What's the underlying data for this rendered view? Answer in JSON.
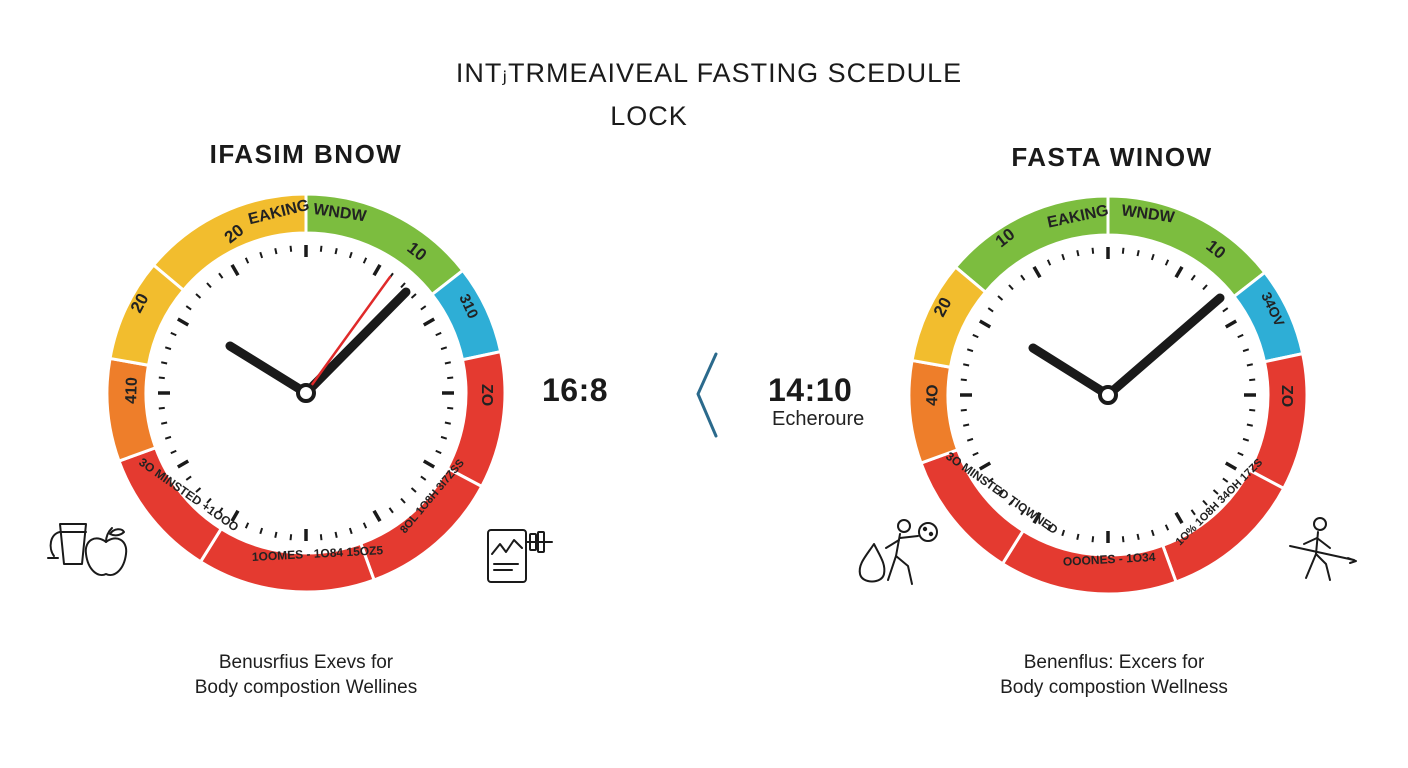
{
  "title": {
    "line1": "INTⱼTRMEAIVEAL FASTING SCEDULE",
    "line2": "LOCK"
  },
  "colors": {
    "yellow": "#f2bd2e",
    "green": "#7cbd3f",
    "blue": "#2eaed6",
    "orange": "#ee7e2a",
    "red": "#e43a30",
    "hand": "#1a1a1a",
    "second_hand": "#e02a2a",
    "arrow": "#2b6a8c"
  },
  "left_clock": {
    "panel_title": "IFASIM BNOW",
    "ratio": "16:8",
    "segments": {
      "eaking": "EAKING",
      "wndw": "WNDW",
      "ten": "10",
      "twenty_top": "20",
      "twenty": "20",
      "blue": "310",
      "red_right": "ZO",
      "orange": "410",
      "bottom_left": "3O MINSTED   +1OOO",
      "bottom_mid": "1OOMES - 1O84 15OZ5",
      "bottom_right": "8OL 1O8H 3I7ZSS"
    },
    "icon_left": "apple-juice-icon",
    "icon_right": "chart-dumbbell-icon",
    "benefit_line1": "Benusrfius Exevs for",
    "benefit_line2": "Body compostion Wellines"
  },
  "right_clock": {
    "panel_title": "FASTA WINOW",
    "ratio": "14:10",
    "ratio_sub": "Echeroure",
    "segments": {
      "eaking": "EAKING",
      "wndw": "WNDW",
      "ten_left": "10",
      "ten_right": "10",
      "twenty": "20",
      "blue": "34OV",
      "red_right": "ZO",
      "orange": "4O",
      "bottom_left": "3O MINSTED TIOWNED",
      "bottom_mid": "OOONES - 1O34",
      "bottom_right": "1O% 1O8H 34OH 17ZS"
    },
    "icon_left": "runner-water-icon",
    "icon_right": "walker-stick-icon",
    "benefit_line1": "Benenflus: Excers for",
    "benefit_line2": "Body compostion Wellness"
  },
  "divider_icon": "chevron-left-icon"
}
